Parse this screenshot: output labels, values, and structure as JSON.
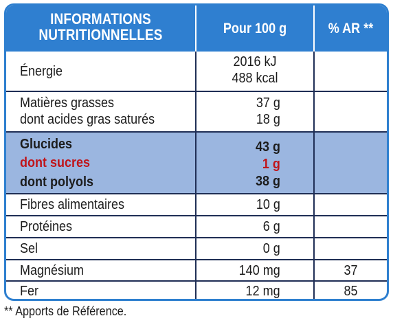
{
  "header": {
    "title_line1": "INFORMATIONS",
    "title_line2": "NUTRITIONNELLES",
    "col_per100": "Pour 100 g",
    "col_ar": "% AR **"
  },
  "rows": {
    "energie": {
      "label": "Énergie",
      "value_kj": "2016 kJ",
      "value_kcal": "488 kcal",
      "ar": ""
    },
    "matieres": {
      "label": "Matières grasses",
      "value": "37 g",
      "sub_label": "dont acides gras saturés",
      "sub_value": "18 g",
      "ar": ""
    },
    "glucides": {
      "label": "Glucides",
      "value": "43 g",
      "sucres_label": "dont sucres",
      "sucres_value": "1 g",
      "polyols_label": "dont polyols",
      "polyols_value": "38 g",
      "ar": ""
    },
    "fibres": {
      "label": "Fibres alimentaires",
      "value": "10 g",
      "ar": ""
    },
    "proteines": {
      "label": "Protéines",
      "value": "6 g",
      "ar": ""
    },
    "sel": {
      "label": "Sel",
      "value": "0 g",
      "ar": ""
    },
    "magnesium": {
      "label": "Magnésium",
      "value": "140 mg",
      "ar": "37"
    },
    "fer": {
      "label": "Fer",
      "value": "12 mg",
      "ar": "85"
    }
  },
  "footnote": "** Apports de Référence.",
  "colors": {
    "header_blue": "#2f7fd0",
    "band_blue": "#9bb6e0",
    "border_blue": "#2e7fcf",
    "sugar_red": "#c0151a"
  }
}
